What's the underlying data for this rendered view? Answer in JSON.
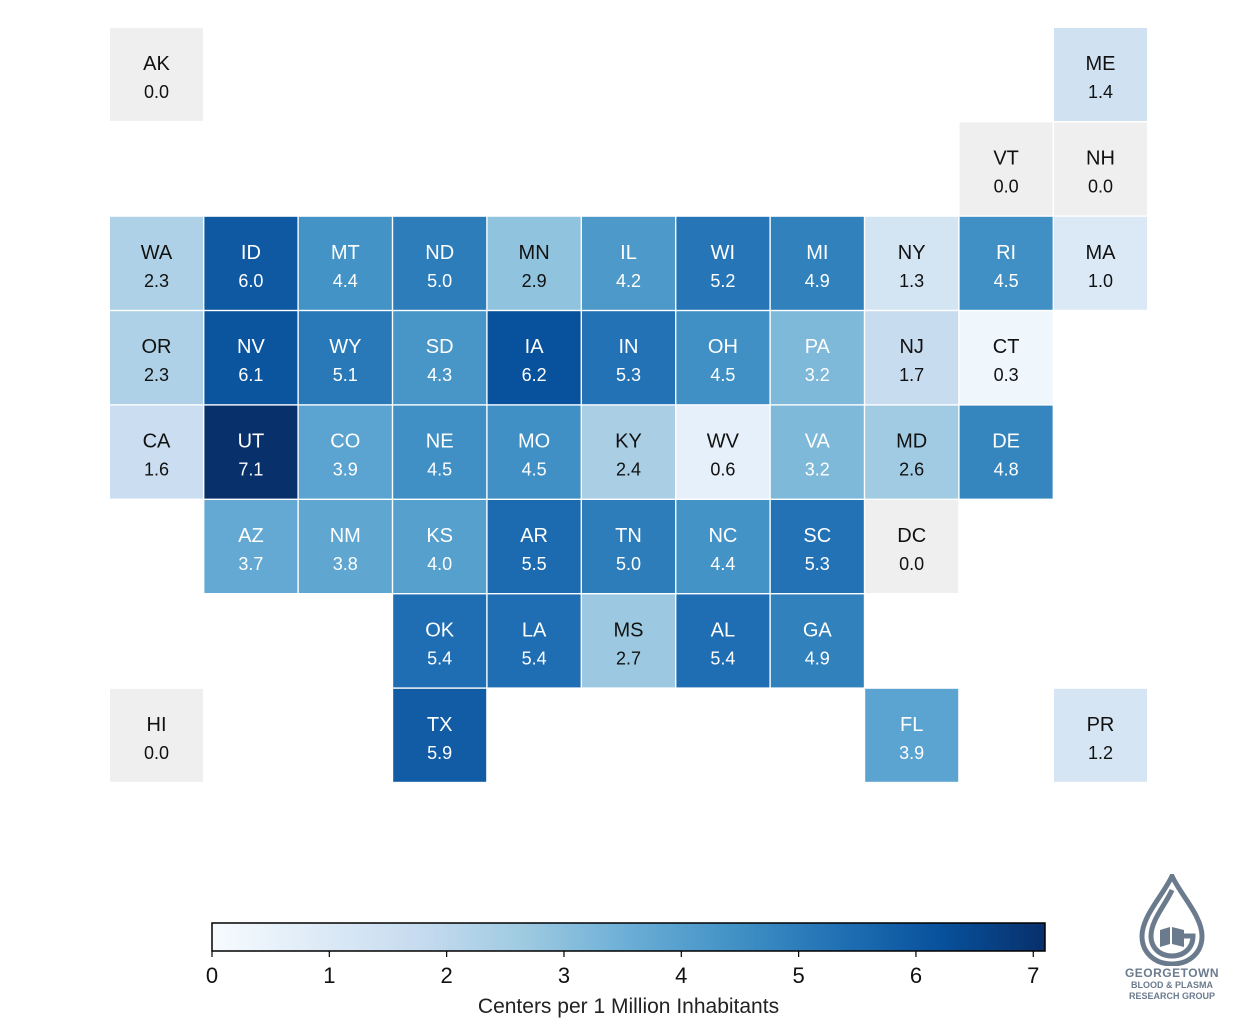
{
  "chart_data": {
    "type": "heatmap",
    "title": "",
    "tiles": [
      {
        "state": "AK",
        "value": 0.0,
        "row": 0,
        "col": 0
      },
      {
        "state": "ME",
        "value": 1.4,
        "row": 0,
        "col": 10
      },
      {
        "state": "VT",
        "value": 0.0,
        "row": 1,
        "col": 9
      },
      {
        "state": "NH",
        "value": 0.0,
        "row": 1,
        "col": 10
      },
      {
        "state": "WA",
        "value": 2.3,
        "row": 2,
        "col": 0
      },
      {
        "state": "ID",
        "value": 6.0,
        "row": 2,
        "col": 1
      },
      {
        "state": "MT",
        "value": 4.4,
        "row": 2,
        "col": 2
      },
      {
        "state": "ND",
        "value": 5.0,
        "row": 2,
        "col": 3
      },
      {
        "state": "MN",
        "value": 2.9,
        "row": 2,
        "col": 4
      },
      {
        "state": "IL",
        "value": 4.2,
        "row": 2,
        "col": 5
      },
      {
        "state": "WI",
        "value": 5.2,
        "row": 2,
        "col": 6
      },
      {
        "state": "MI",
        "value": 4.9,
        "row": 2,
        "col": 7
      },
      {
        "state": "NY",
        "value": 1.3,
        "row": 2,
        "col": 8
      },
      {
        "state": "RI",
        "value": 4.5,
        "row": 2,
        "col": 9
      },
      {
        "state": "MA",
        "value": 1.0,
        "row": 2,
        "col": 10
      },
      {
        "state": "OR",
        "value": 2.3,
        "row": 3,
        "col": 0
      },
      {
        "state": "NV",
        "value": 6.1,
        "row": 3,
        "col": 1
      },
      {
        "state": "WY",
        "value": 5.1,
        "row": 3,
        "col": 2
      },
      {
        "state": "SD",
        "value": 4.3,
        "row": 3,
        "col": 3
      },
      {
        "state": "IA",
        "value": 6.2,
        "row": 3,
        "col": 4
      },
      {
        "state": "IN",
        "value": 5.3,
        "row": 3,
        "col": 5
      },
      {
        "state": "OH",
        "value": 4.5,
        "row": 3,
        "col": 6
      },
      {
        "state": "PA",
        "value": 3.2,
        "row": 3,
        "col": 7
      },
      {
        "state": "NJ",
        "value": 1.7,
        "row": 3,
        "col": 8
      },
      {
        "state": "CT",
        "value": 0.3,
        "row": 3,
        "col": 9
      },
      {
        "state": "CA",
        "value": 1.6,
        "row": 4,
        "col": 0
      },
      {
        "state": "UT",
        "value": 7.1,
        "row": 4,
        "col": 1
      },
      {
        "state": "CO",
        "value": 3.9,
        "row": 4,
        "col": 2
      },
      {
        "state": "NE",
        "value": 4.5,
        "row": 4,
        "col": 3
      },
      {
        "state": "MO",
        "value": 4.5,
        "row": 4,
        "col": 4
      },
      {
        "state": "KY",
        "value": 2.4,
        "row": 4,
        "col": 5
      },
      {
        "state": "WV",
        "value": 0.6,
        "row": 4,
        "col": 6
      },
      {
        "state": "VA",
        "value": 3.2,
        "row": 4,
        "col": 7
      },
      {
        "state": "MD",
        "value": 2.6,
        "row": 4,
        "col": 8
      },
      {
        "state": "DE",
        "value": 4.8,
        "row": 4,
        "col": 9
      },
      {
        "state": "AZ",
        "value": 3.7,
        "row": 5,
        "col": 1
      },
      {
        "state": "NM",
        "value": 3.8,
        "row": 5,
        "col": 2
      },
      {
        "state": "KS",
        "value": 4.0,
        "row": 5,
        "col": 3
      },
      {
        "state": "AR",
        "value": 5.5,
        "row": 5,
        "col": 4
      },
      {
        "state": "TN",
        "value": 5.0,
        "row": 5,
        "col": 5
      },
      {
        "state": "NC",
        "value": 4.4,
        "row": 5,
        "col": 6
      },
      {
        "state": "SC",
        "value": 5.3,
        "row": 5,
        "col": 7
      },
      {
        "state": "DC",
        "value": 0.0,
        "row": 5,
        "col": 8
      },
      {
        "state": "OK",
        "value": 5.4,
        "row": 6,
        "col": 3
      },
      {
        "state": "LA",
        "value": 5.4,
        "row": 6,
        "col": 4
      },
      {
        "state": "MS",
        "value": 2.7,
        "row": 6,
        "col": 5
      },
      {
        "state": "AL",
        "value": 5.4,
        "row": 6,
        "col": 6
      },
      {
        "state": "GA",
        "value": 4.9,
        "row": 6,
        "col": 7
      },
      {
        "state": "HI",
        "value": 0.0,
        "row": 7,
        "col": 0
      },
      {
        "state": "TX",
        "value": 5.9,
        "row": 7,
        "col": 3
      },
      {
        "state": "FL",
        "value": 3.9,
        "row": 7,
        "col": 8
      },
      {
        "state": "PR",
        "value": 1.2,
        "row": 7,
        "col": 10
      }
    ],
    "zero_color": "#efefef",
    "colormap": "Blues",
    "color_range": [
      0,
      7.1
    ],
    "colorbar": {
      "label": "Centers per 1 Million Inhabitants",
      "ticks": [
        0,
        1,
        2,
        3,
        4,
        5,
        6,
        7
      ],
      "tick_labels": [
        "0",
        "1",
        "2",
        "3",
        "4",
        "5",
        "6",
        "7"
      ]
    }
  },
  "logo": {
    "line1": "GEORGETOWN",
    "line2": "BLOOD & PLASMA",
    "line3": "RESEARCH GROUP",
    "color": "#6b7b8e"
  }
}
